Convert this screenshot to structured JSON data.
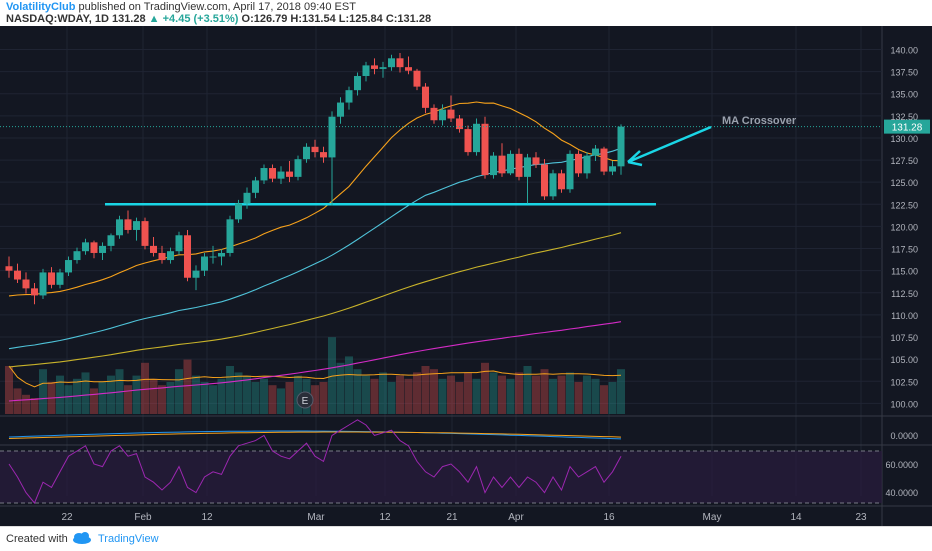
{
  "header": {
    "author": "VolatilityClub",
    "published": "published on TradingView.com, April 17, 2018 09:40 EST",
    "symbol": "NASDAQ:WDAY, 1D",
    "last": "131.28",
    "change": "▲ +4.45 (+3.51%)",
    "ohlc": "O:126.79  H:131.54  L:125.84  C:131.28"
  },
  "footer": {
    "created": "Created with",
    "brand": "TradingView"
  },
  "colors": {
    "bg": "#131722",
    "up": "#26a69a",
    "down": "#ef5350",
    "ma20": "#f7a21b",
    "ma50": "#4fc3d9",
    "ma100": "#c8b32a",
    "ma200": "#d42bc6",
    "line": "#1ad6e6",
    "rsi": "#9c27b0"
  },
  "chart_data": {
    "type": "candlestick",
    "x_tick_labels": [
      "22",
      "Feb",
      "12",
      "Mar",
      "12",
      "21",
      "Apr",
      "16",
      "May",
      "14",
      "23"
    ],
    "y_tick_labels": [
      "140.00",
      "137.50",
      "135.00",
      "132.50",
      "130.00",
      "127.50",
      "125.00",
      "122.50",
      "120.00",
      "117.50",
      "115.00",
      "112.50",
      "110.00",
      "107.50",
      "105.00",
      "102.50",
      "100.00"
    ],
    "ylim": [
      98.8,
      142.2
    ],
    "last_price_label": "131.28",
    "candles": [
      [
        115.5,
        116.6,
        114.2,
        115.0
      ],
      [
        115.0,
        115.8,
        113.6,
        114.0
      ],
      [
        114.0,
        114.8,
        112.4,
        113.0
      ],
      [
        113.0,
        113.6,
        111.2,
        112.2
      ],
      [
        112.2,
        115.2,
        111.8,
        114.8
      ],
      [
        114.8,
        115.4,
        113.0,
        113.4
      ],
      [
        113.4,
        115.2,
        113.0,
        114.8
      ],
      [
        114.8,
        116.6,
        114.4,
        116.2
      ],
      [
        116.2,
        117.6,
        115.8,
        117.2
      ],
      [
        117.2,
        118.6,
        116.8,
        118.2
      ],
      [
        118.2,
        118.4,
        116.4,
        117.0
      ],
      [
        117.0,
        118.2,
        116.2,
        117.8
      ],
      [
        117.8,
        119.2,
        117.2,
        119.0
      ],
      [
        119.0,
        121.2,
        118.6,
        120.8
      ],
      [
        120.8,
        121.8,
        119.2,
        119.6
      ],
      [
        119.6,
        121.0,
        118.4,
        120.6
      ],
      [
        120.6,
        121.0,
        117.4,
        117.8
      ],
      [
        117.8,
        118.8,
        116.6,
        117.0
      ],
      [
        117.0,
        117.8,
        115.8,
        116.2
      ],
      [
        116.2,
        117.6,
        115.8,
        117.2
      ],
      [
        117.2,
        119.4,
        116.8,
        119.0
      ],
      [
        119.0,
        119.6,
        113.8,
        114.2
      ],
      [
        114.2,
        115.6,
        112.8,
        115.0
      ],
      [
        115.0,
        117.0,
        114.4,
        116.6
      ],
      [
        116.6,
        117.8,
        115.8,
        116.6
      ],
      [
        116.6,
        117.4,
        115.6,
        117.0
      ],
      [
        117.0,
        121.2,
        116.6,
        120.8
      ],
      [
        120.8,
        123.0,
        120.4,
        122.6
      ],
      [
        122.6,
        124.4,
        122.0,
        123.8
      ],
      [
        123.8,
        125.6,
        123.2,
        125.2
      ],
      [
        125.2,
        127.0,
        124.8,
        126.6
      ],
      [
        126.6,
        127.0,
        125.0,
        125.4
      ],
      [
        125.4,
        126.8,
        124.8,
        126.2
      ],
      [
        126.2,
        127.4,
        125.0,
        125.6
      ],
      [
        125.6,
        128.0,
        125.2,
        127.6
      ],
      [
        127.6,
        129.4,
        127.2,
        129.0
      ],
      [
        129.0,
        129.8,
        127.8,
        128.4
      ],
      [
        128.4,
        129.0,
        127.2,
        127.8
      ],
      [
        127.8,
        133.0,
        122.4,
        132.4
      ],
      [
        132.4,
        134.6,
        131.6,
        134.0
      ],
      [
        134.0,
        135.8,
        133.2,
        135.4
      ],
      [
        135.4,
        137.4,
        134.8,
        137.0
      ],
      [
        137.0,
        138.6,
        136.4,
        138.2
      ],
      [
        138.2,
        139.0,
        137.2,
        137.8
      ],
      [
        137.8,
        138.6,
        136.8,
        138.0
      ],
      [
        138.0,
        139.4,
        137.6,
        139.0
      ],
      [
        139.0,
        139.6,
        137.4,
        138.0
      ],
      [
        138.0,
        139.2,
        137.2,
        137.6
      ],
      [
        137.6,
        137.8,
        135.4,
        135.8
      ],
      [
        135.8,
        136.2,
        132.8,
        133.4
      ],
      [
        133.4,
        133.8,
        131.6,
        132.0
      ],
      [
        132.0,
        133.8,
        131.4,
        133.2
      ],
      [
        133.2,
        134.8,
        131.8,
        132.2
      ],
      [
        132.2,
        132.6,
        130.6,
        131.0
      ],
      [
        131.0,
        131.4,
        128.0,
        128.4
      ],
      [
        128.4,
        132.2,
        128.0,
        131.6
      ],
      [
        131.6,
        132.4,
        125.4,
        125.8
      ],
      [
        125.8,
        128.4,
        125.4,
        128.0
      ],
      [
        128.0,
        129.4,
        125.6,
        126.0
      ],
      [
        126.0,
        128.6,
        125.8,
        128.2
      ],
      [
        128.2,
        128.8,
        125.2,
        125.6
      ],
      [
        125.6,
        128.2,
        122.6,
        127.8
      ],
      [
        127.8,
        128.4,
        126.6,
        127.0
      ],
      [
        127.0,
        127.6,
        123.0,
        123.4
      ],
      [
        123.4,
        126.4,
        123.0,
        126.0
      ],
      [
        126.0,
        126.4,
        123.8,
        124.2
      ],
      [
        124.2,
        128.6,
        123.8,
        128.2
      ],
      [
        128.2,
        128.6,
        125.6,
        126.0
      ],
      [
        126.0,
        128.4,
        125.4,
        128.0
      ],
      [
        128.0,
        129.2,
        127.4,
        128.8
      ],
      [
        128.8,
        129.0,
        125.8,
        126.2
      ],
      [
        126.2,
        127.4,
        125.8,
        126.8
      ],
      [
        126.79,
        131.54,
        125.84,
        131.28
      ]
    ],
    "volume": [
      15,
      8,
      6,
      5,
      14,
      10,
      12,
      9,
      11,
      13,
      8,
      10,
      12,
      14,
      9,
      12,
      16,
      11,
      9,
      10,
      14,
      17,
      12,
      10,
      9,
      11,
      15,
      13,
      12,
      10,
      11,
      9,
      8,
      10,
      12,
      11,
      9,
      10,
      24,
      16,
      18,
      14,
      12,
      11,
      13,
      10,
      12,
      11,
      13,
      15,
      14,
      11,
      12,
      10,
      13,
      11,
      16,
      13,
      12,
      11,
      13,
      15,
      12,
      14,
      11,
      12,
      13,
      10,
      12,
      11,
      9,
      10,
      14
    ],
    "volume_ylim": [
      0,
      25
    ],
    "annotation": "MA Crossover",
    "earnings_marker": "E",
    "support_level": 122.5,
    "macd_label": "0.0000",
    "rsi_labels": [
      "60.0000",
      "40.0000"
    ]
  }
}
